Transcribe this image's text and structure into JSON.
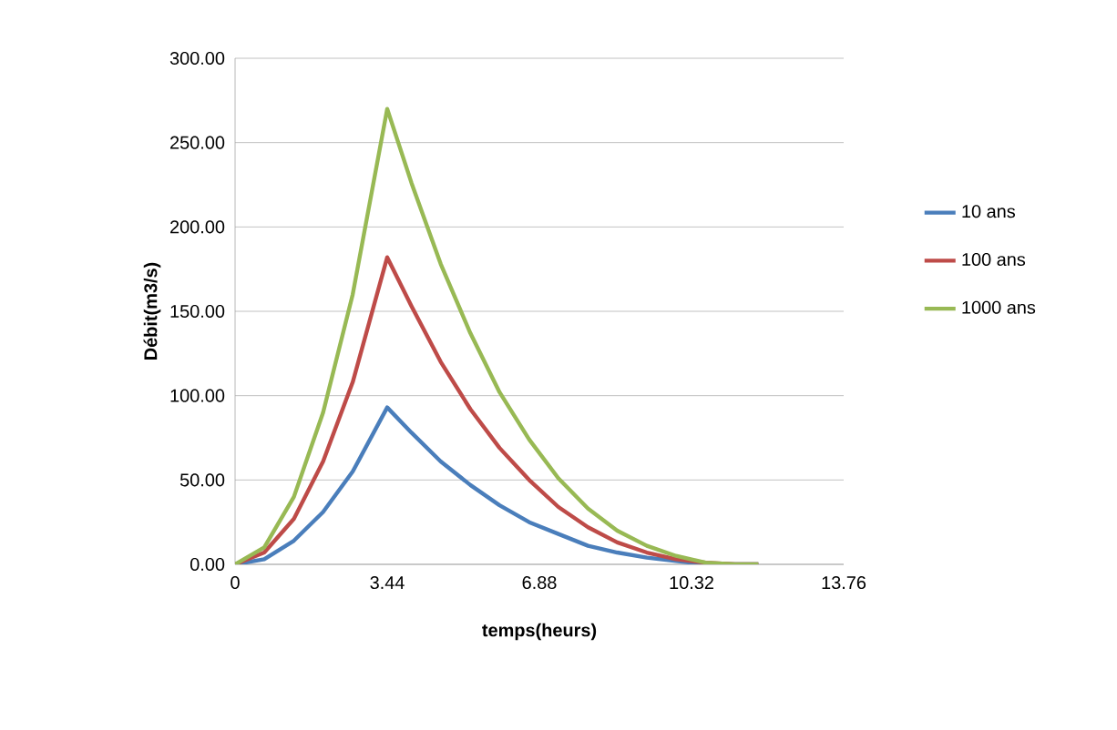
{
  "chart_data": {
    "type": "line",
    "xlabel": "temps(heurs)",
    "ylabel": "Débit(m3/s)",
    "x": [
      0,
      0.66,
      1.33,
      1.99,
      2.66,
      3.44,
      3.99,
      4.65,
      5.32,
      5.98,
      6.65,
      7.31,
      7.98,
      8.64,
      9.31,
      9.97,
      10.64,
      11.3,
      11.83
    ],
    "series": [
      {
        "name": "10 ans",
        "color": "#4a7ebb",
        "values": [
          0,
          3,
          14,
          31,
          55,
          93,
          78,
          61,
          47,
          35,
          25,
          18,
          11,
          7,
          4,
          2,
          0,
          0,
          0
        ]
      },
      {
        "name": "100 ans",
        "color": "#be4b48",
        "values": [
          0,
          7,
          27,
          61,
          108,
          182,
          153,
          120,
          92,
          69,
          50,
          34,
          22,
          13,
          7,
          3,
          1,
          0,
          0
        ]
      },
      {
        "name": "1000 ans",
        "color": "#98b954",
        "values": [
          0,
          10,
          40,
          90,
          160,
          270,
          226,
          178,
          137,
          102,
          74,
          51,
          33,
          20,
          11,
          5,
          1,
          0,
          0
        ]
      }
    ],
    "xlim": [
      0,
      13.76
    ],
    "xticks": [
      0,
      3.44,
      6.88,
      10.32,
      13.76
    ],
    "ylim": [
      0,
      300
    ],
    "yticks": [
      {
        "value": 0,
        "label": "0.00"
      },
      {
        "value": 50,
        "label": "50.00"
      },
      {
        "value": 100,
        "label": "100.00"
      },
      {
        "value": 150,
        "label": "150.00"
      },
      {
        "value": 200,
        "label": "200.00"
      },
      {
        "value": 250,
        "label": "250.00"
      },
      {
        "value": 300,
        "label": "300.00"
      }
    ],
    "grid": "y",
    "legend": "right",
    "marker": "none",
    "line_style": "solid"
  }
}
